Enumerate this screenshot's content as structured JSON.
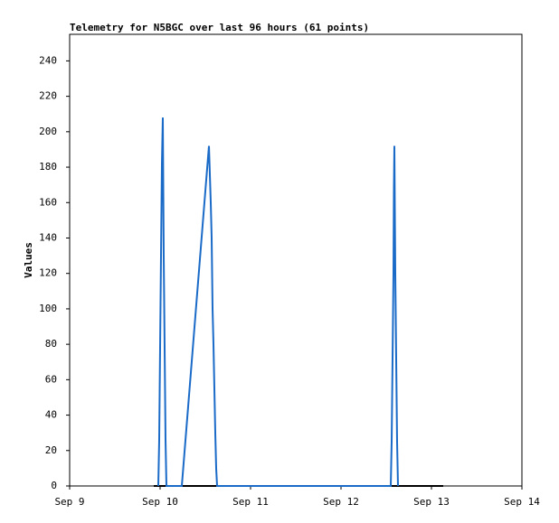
{
  "chart_data": {
    "type": "line",
    "title": "Telemetry for N5BGC over last 96 hours (61 points)",
    "y_label": "Values",
    "xlim": [
      0,
      5
    ],
    "xticks": [
      {
        "value": 0,
        "label": "Sep 9"
      },
      {
        "value": 1,
        "label": "Sep 10"
      },
      {
        "value": 2,
        "label": "Sep 11"
      },
      {
        "value": 3,
        "label": "Sep 12"
      },
      {
        "value": 4,
        "label": "Sep 13"
      },
      {
        "value": 5,
        "label": "Sep 14"
      }
    ],
    "ylim": [
      0,
      255
    ],
    "yticks": [
      0,
      20,
      40,
      60,
      80,
      100,
      120,
      140,
      160,
      180,
      200,
      220,
      240
    ],
    "series": [
      {
        "color": "#000000",
        "x": [
          0.93,
          4.13
        ],
        "values": [
          0,
          0
        ]
      },
      {
        "color": "#1a6ac8",
        "x": [
          0.98,
          0.99,
          1.0,
          1.01,
          1.02,
          1.03,
          1.04,
          1.05,
          1.06,
          1.07,
          1.24,
          1.54,
          1.56,
          1.57,
          1.58,
          1.59,
          1.6,
          1.61,
          1.62,
          1.63,
          3.55,
          3.56,
          3.57,
          3.58,
          3.585,
          3.59,
          3.6,
          3.61,
          3.62,
          3.63
        ],
        "values": [
          0,
          26,
          78,
          130,
          182,
          208,
          130,
          78,
          26,
          0,
          0,
          192,
          160,
          140,
          100,
          80,
          55,
          30,
          10,
          0,
          0,
          25,
          72,
          120,
          168,
          192,
          120,
          72,
          25,
          0
        ]
      }
    ]
  }
}
